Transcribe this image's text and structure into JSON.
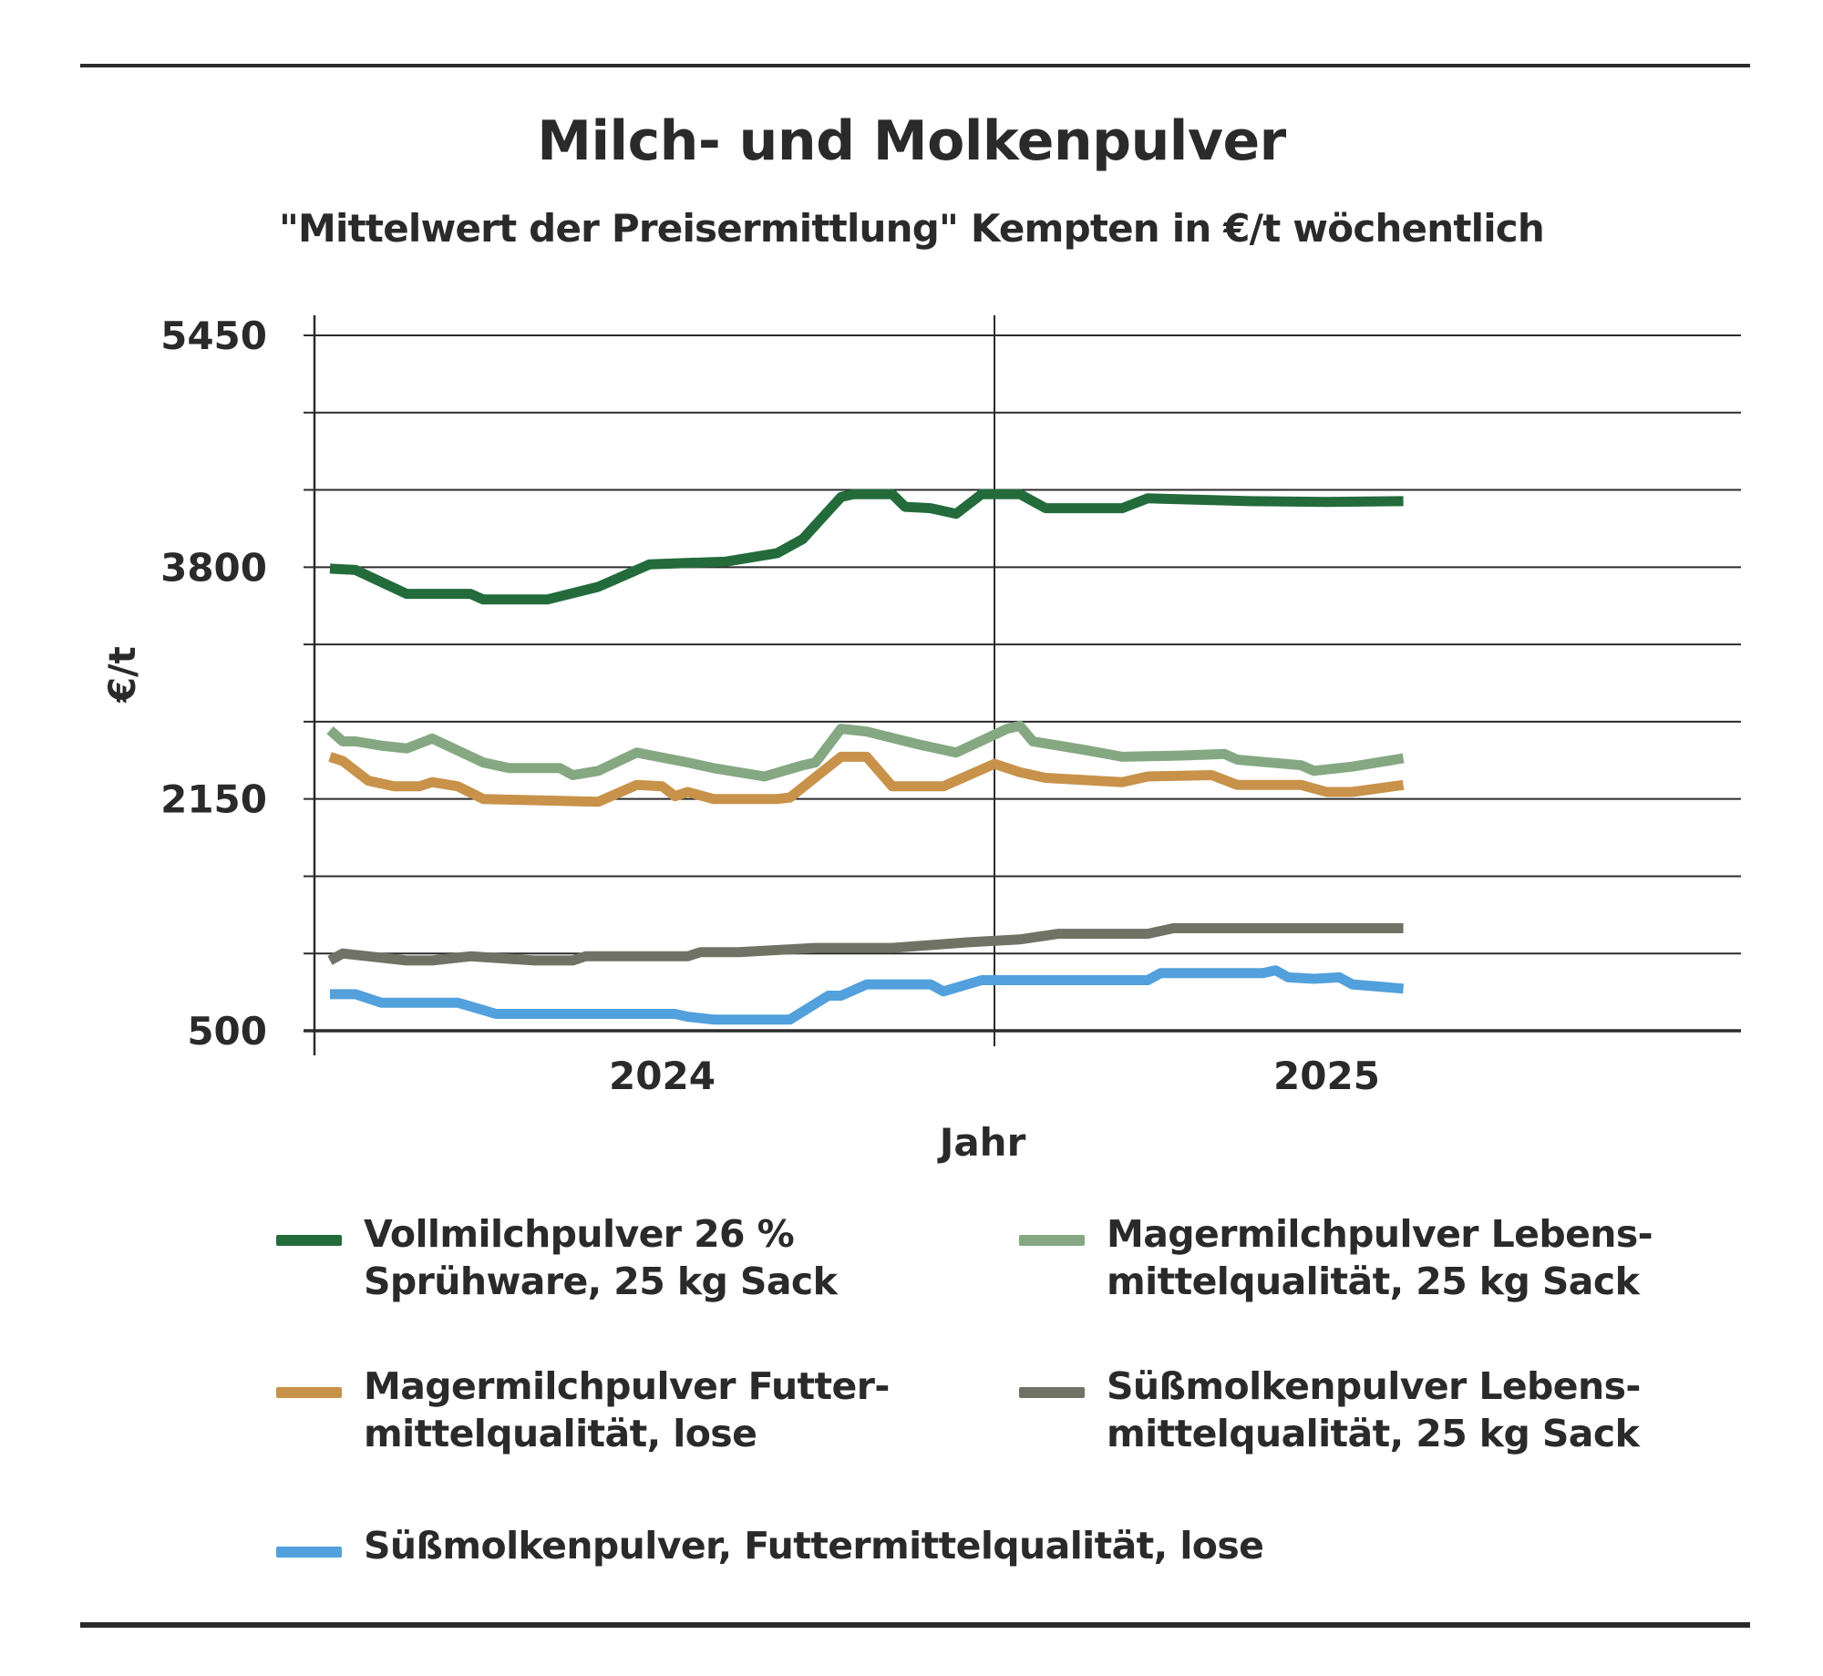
{
  "header": {
    "title": "Milch- und Molkenpulver",
    "subtitle": "\"Mittelwert der Preisermittlung\" Kempten in €/t wöchentlich"
  },
  "chart_data": {
    "type": "line",
    "title": "Milch- und Molkenpulver",
    "subtitle": "\"Mittelwert der Preisermittlung\" Kempten in €/t wöchentlich",
    "xlabel": "Jahr",
    "ylabel": "€/t",
    "ylim": [
      500,
      5450
    ],
    "y_tick_labels": [
      "5450",
      "3800",
      "2150",
      "500"
    ],
    "x_tick_labels": [
      "2024",
      "2025"
    ],
    "grid": true,
    "legend_placement": "bottom",
    "x_unit": "week index (0 = first week of 2024, 52 = first week of 2025)",
    "series": [
      {
        "name": "Vollmilchpulver 26 %\nSprühware, 25 kg Sack",
        "color": "#236b3b",
        "points": [
          [
            0,
            3790
          ],
          [
            2,
            3780
          ],
          [
            6,
            3610
          ],
          [
            11,
            3610
          ],
          [
            12,
            3570
          ],
          [
            17,
            3570
          ],
          [
            21,
            3660
          ],
          [
            25,
            3820
          ],
          [
            31,
            3840
          ],
          [
            35,
            3900
          ],
          [
            37,
            4000
          ],
          [
            40,
            4300
          ],
          [
            41,
            4320
          ],
          [
            44,
            4320
          ],
          [
            45,
            4230
          ],
          [
            47,
            4220
          ],
          [
            49,
            4180
          ],
          [
            51,
            4320
          ],
          [
            54,
            4320
          ],
          [
            56,
            4220
          ],
          [
            62,
            4220
          ],
          [
            64,
            4290
          ],
          [
            72,
            4270
          ],
          [
            78,
            4265
          ],
          [
            84,
            4270
          ]
        ]
      },
      {
        "name": "Magermilchpulver Lebens-\nmittelqualität, 25 kg Sack",
        "color": "#85a882",
        "points": [
          [
            0,
            2640
          ],
          [
            1,
            2560
          ],
          [
            2,
            2560
          ],
          [
            4,
            2530
          ],
          [
            6,
            2510
          ],
          [
            8,
            2580
          ],
          [
            12,
            2410
          ],
          [
            14,
            2370
          ],
          [
            18,
            2370
          ],
          [
            19,
            2320
          ],
          [
            21,
            2350
          ],
          [
            24,
            2480
          ],
          [
            28,
            2410
          ],
          [
            30,
            2370
          ],
          [
            34,
            2310
          ],
          [
            37,
            2390
          ],
          [
            38,
            2410
          ],
          [
            40,
            2650
          ],
          [
            42,
            2630
          ],
          [
            46,
            2540
          ],
          [
            49,
            2480
          ],
          [
            53,
            2650
          ],
          [
            54,
            2670
          ],
          [
            55,
            2560
          ],
          [
            59,
            2500
          ],
          [
            62,
            2450
          ],
          [
            67,
            2460
          ],
          [
            70,
            2470
          ],
          [
            71,
            2430
          ],
          [
            76,
            2390
          ],
          [
            77,
            2350
          ],
          [
            80,
            2380
          ],
          [
            84,
            2440
          ]
        ]
      },
      {
        "name": "Magermilchpulver Futter-\nmittelqualität, lose",
        "color": "#c8924a",
        "points": [
          [
            0,
            2450
          ],
          [
            1,
            2420
          ],
          [
            3,
            2280
          ],
          [
            5,
            2240
          ],
          [
            7,
            2240
          ],
          [
            8,
            2270
          ],
          [
            10,
            2240
          ],
          [
            12,
            2150
          ],
          [
            21,
            2130
          ],
          [
            24,
            2250
          ],
          [
            26,
            2240
          ],
          [
            27,
            2170
          ],
          [
            28,
            2200
          ],
          [
            30,
            2150
          ],
          [
            35,
            2150
          ],
          [
            36,
            2160
          ],
          [
            40,
            2450
          ],
          [
            42,
            2450
          ],
          [
            44,
            2240
          ],
          [
            48,
            2240
          ],
          [
            52,
            2400
          ],
          [
            54,
            2340
          ],
          [
            56,
            2300
          ],
          [
            62,
            2270
          ],
          [
            64,
            2310
          ],
          [
            69,
            2320
          ],
          [
            71,
            2250
          ],
          [
            76,
            2250
          ],
          [
            78,
            2200
          ],
          [
            80,
            2200
          ],
          [
            84,
            2250
          ]
        ]
      },
      {
        "name": "Süßmolkenpulver Lebens-\nmittelqualität, 25 kg Sack",
        "color": "#6f7264",
        "points": [
          [
            0,
            1000
          ],
          [
            1,
            1050
          ],
          [
            3,
            1030
          ],
          [
            6,
            1000
          ],
          [
            8,
            1000
          ],
          [
            11,
            1030
          ],
          [
            16,
            1000
          ],
          [
            19,
            1000
          ],
          [
            20,
            1030
          ],
          [
            28,
            1030
          ],
          [
            29,
            1060
          ],
          [
            32,
            1060
          ],
          [
            38,
            1090
          ],
          [
            44,
            1090
          ],
          [
            50,
            1130
          ],
          [
            54,
            1150
          ],
          [
            57,
            1190
          ],
          [
            64,
            1190
          ],
          [
            66,
            1230
          ],
          [
            84,
            1230
          ]
        ]
      },
      {
        "name": "Süßmolkenpulver, Futtermittelqualität, lose",
        "color": "#52a0dc",
        "points": [
          [
            0,
            760
          ],
          [
            2,
            760
          ],
          [
            4,
            700
          ],
          [
            10,
            700
          ],
          [
            13,
            620
          ],
          [
            27,
            620
          ],
          [
            28,
            600
          ],
          [
            30,
            580
          ],
          [
            36,
            580
          ],
          [
            39,
            750
          ],
          [
            40,
            750
          ],
          [
            42,
            830
          ],
          [
            47,
            830
          ],
          [
            48,
            780
          ],
          [
            51,
            860
          ],
          [
            64,
            860
          ],
          [
            65,
            910
          ],
          [
            73,
            910
          ],
          [
            74,
            930
          ],
          [
            75,
            880
          ],
          [
            77,
            870
          ],
          [
            79,
            880
          ],
          [
            80,
            830
          ],
          [
            84,
            800
          ]
        ]
      }
    ]
  }
}
